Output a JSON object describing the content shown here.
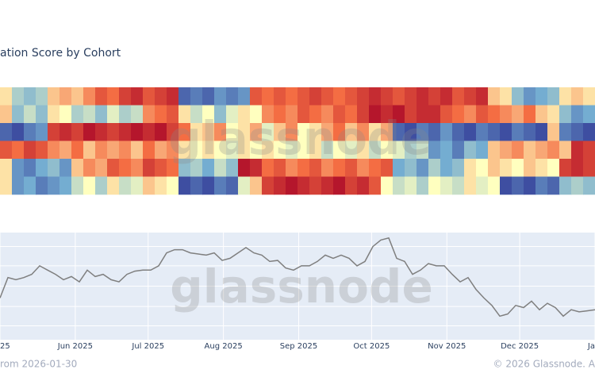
{
  "title": "ation Score by Cohort",
  "watermark": "glassnode",
  "footer": {
    "left": "rom 2026-01-30",
    "right": "© 2026 Glassnode. A"
  },
  "chart_data": [
    {
      "type": "heatmap",
      "colorscale": [
        [
          0,
          "#313695"
        ],
        [
          0.25,
          "#74add1"
        ],
        [
          0.5,
          "#ffffbf"
        ],
        [
          0.75,
          "#f46d43"
        ],
        [
          1,
          "#a50026"
        ]
      ],
      "values": [
        [
          0.55,
          0.35,
          0.3,
          0.35,
          0.6,
          0.65,
          0.6,
          0.7,
          0.8,
          0.75,
          0.85,
          0.9,
          0.8,
          0.85,
          0.9,
          0.1,
          0.15,
          0.1,
          0.2,
          0.15,
          0.2,
          0.8,
          0.75,
          0.8,
          0.75,
          0.8,
          0.85,
          0.8,
          0.75,
          0.8,
          0.85,
          0.9,
          0.85,
          0.8,
          0.85,
          0.9,
          0.85,
          0.9,
          0.8,
          0.85,
          0.9,
          0.6,
          0.55,
          0.3,
          0.2,
          0.25,
          0.3,
          0.55,
          0.6,
          0.55
        ],
        [
          0.6,
          0.3,
          0.4,
          0.3,
          0.55,
          0.5,
          0.35,
          0.4,
          0.3,
          0.45,
          0.35,
          0.4,
          0.7,
          0.75,
          0.8,
          0.55,
          0.4,
          0.5,
          0.3,
          0.45,
          0.55,
          0.5,
          0.7,
          0.75,
          0.7,
          0.8,
          0.75,
          0.7,
          0.8,
          0.75,
          0.85,
          0.95,
          0.9,
          0.95,
          0.85,
          0.9,
          0.9,
          0.8,
          0.75,
          0.7,
          0.8,
          0.75,
          0.7,
          0.65,
          0.75,
          0.6,
          0.55,
          0.3,
          0.2,
          0.25
        ],
        [
          0.1,
          0.05,
          0.15,
          0.2,
          0.85,
          0.9,
          0.85,
          0.95,
          0.9,
          0.85,
          0.9,
          0.95,
          0.9,
          0.95,
          0.85,
          0.75,
          0.55,
          0.6,
          0.7,
          0.5,
          0.55,
          0.65,
          0.45,
          0.6,
          0.7,
          0.5,
          0.55,
          0.65,
          0.75,
          0.6,
          0.7,
          0.55,
          0.65,
          0.1,
          0.05,
          0.15,
          0.1,
          0.2,
          0.1,
          0.05,
          0.15,
          0.1,
          0.05,
          0.15,
          0.1,
          0.05,
          0.6,
          0.15,
          0.1,
          0.05
        ],
        [
          0.8,
          0.75,
          0.85,
          0.8,
          0.7,
          0.65,
          0.75,
          0.6,
          0.7,
          0.65,
          0.7,
          0.6,
          0.75,
          0.65,
          0.7,
          0.55,
          0.5,
          0.55,
          0.5,
          0.45,
          0.55,
          0.5,
          0.55,
          0.5,
          0.45,
          0.5,
          0.55,
          0.4,
          0.5,
          0.45,
          0.55,
          0.4,
          0.5,
          0.45,
          0.35,
          0.4,
          0.2,
          0.25,
          0.15,
          0.3,
          0.25,
          0.6,
          0.65,
          0.7,
          0.6,
          0.65,
          0.7,
          0.6,
          0.9,
          0.85
        ],
        [
          0.55,
          0.2,
          0.15,
          0.25,
          0.3,
          0.2,
          0.6,
          0.7,
          0.65,
          0.8,
          0.75,
          0.7,
          0.85,
          0.8,
          0.75,
          0.3,
          0.35,
          0.25,
          0.4,
          0.3,
          0.95,
          0.9,
          0.75,
          0.8,
          0.7,
          0.75,
          0.8,
          0.7,
          0.75,
          0.8,
          0.7,
          0.75,
          0.8,
          0.25,
          0.3,
          0.2,
          0.35,
          0.25,
          0.3,
          0.55,
          0.5,
          0.6,
          0.55,
          0.5,
          0.6,
          0.55,
          0.5,
          0.85,
          0.9,
          0.85
        ],
        [
          0.55,
          0.2,
          0.25,
          0.15,
          0.2,
          0.25,
          0.4,
          0.5,
          0.35,
          0.55,
          0.4,
          0.45,
          0.6,
          0.55,
          0.5,
          0.05,
          0.1,
          0.05,
          0.15,
          0.1,
          0.45,
          0.6,
          0.85,
          0.9,
          0.95,
          0.9,
          0.85,
          0.9,
          0.95,
          0.85,
          0.9,
          0.8,
          0.5,
          0.4,
          0.45,
          0.35,
          0.5,
          0.45,
          0.4,
          0.55,
          0.45,
          0.5,
          0.05,
          0.1,
          0.05,
          0.15,
          0.1,
          0.3,
          0.35,
          0.3
        ]
      ]
    },
    {
      "type": "line",
      "color": "#7f7f7f",
      "grid": true,
      "xlim": [
        0,
        245
      ],
      "xticks": [
        {
          "value": 0,
          "label": "25"
        },
        {
          "value": 31,
          "label": "Jun 2025"
        },
        {
          "value": 61,
          "label": "Jul 2025"
        },
        {
          "value": 92,
          "label": "Aug 2025"
        },
        {
          "value": 123,
          "label": "Sep 2025"
        },
        {
          "value": 153,
          "label": "Oct 2025"
        },
        {
          "value": 184,
          "label": "Nov 2025"
        },
        {
          "value": 214,
          "label": "Dec 2025"
        },
        {
          "value": 245,
          "label": "Ja"
        }
      ],
      "ylim": [
        0,
        100
      ],
      "yticks": [
        13,
        31,
        50,
        69,
        87
      ],
      "values": [
        39,
        58,
        56,
        58,
        61,
        69,
        65,
        61,
        56,
        59,
        54,
        65,
        59,
        61,
        56,
        54,
        61,
        64,
        65,
        65,
        69,
        81,
        84,
        84,
        81,
        80,
        79,
        81,
        74,
        76,
        81,
        86,
        81,
        79,
        73,
        74,
        67,
        65,
        69,
        69,
        73,
        79,
        76,
        79,
        76,
        69,
        73,
        87,
        93,
        95,
        76,
        73,
        61,
        65,
        71,
        69,
        69,
        61,
        54,
        58,
        47,
        39,
        32,
        22,
        24,
        32,
        30,
        36,
        28,
        34,
        30,
        22,
        28,
        26,
        27,
        28
      ]
    }
  ]
}
